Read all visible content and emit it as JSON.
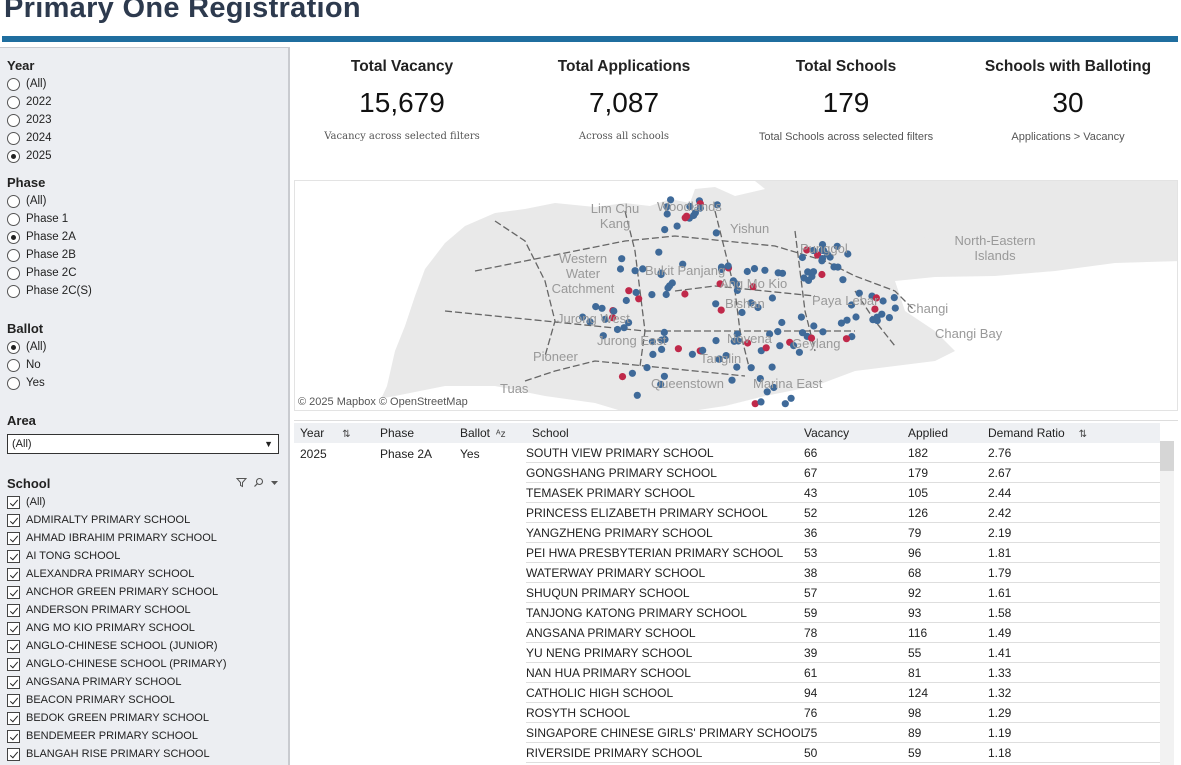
{
  "title": "Primary One Registration",
  "filters": {
    "year": {
      "label": "Year",
      "options": [
        "(All)",
        "2022",
        "2023",
        "2024",
        "2025"
      ],
      "selected": "2025"
    },
    "phase": {
      "label": "Phase",
      "options": [
        "(All)",
        "Phase 1",
        "Phase 2A",
        "Phase 2B",
        "Phase 2C",
        "Phase 2C(S)"
      ],
      "selected": "Phase 2A"
    },
    "ballot": {
      "label": "Ballot",
      "options": [
        "(All)",
        "No",
        "Yes"
      ],
      "selected": "(All)"
    },
    "area": {
      "label": "Area",
      "value": "(All)"
    },
    "school": {
      "label": "School",
      "options": [
        "(All)",
        "ADMIRALTY PRIMARY SCHOOL",
        "AHMAD IBRAHIM PRIMARY SCHOOL",
        "AI TONG SCHOOL",
        "ALEXANDRA PRIMARY SCHOOL",
        "ANCHOR GREEN PRIMARY SCHOOL",
        "ANDERSON PRIMARY SCHOOL",
        "ANG MO KIO PRIMARY SCHOOL",
        "ANGLO-CHINESE SCHOOL (JUNIOR)",
        "ANGLO-CHINESE SCHOOL (PRIMARY)",
        "ANGSANA PRIMARY SCHOOL",
        "BEACON PRIMARY SCHOOL",
        "BEDOK GREEN PRIMARY SCHOOL",
        "BENDEMEER PRIMARY SCHOOL",
        "BLANGAH RISE PRIMARY SCHOOL"
      ]
    }
  },
  "kpis": {
    "total_vacancy": {
      "label": "Total Vacancy",
      "value": "15,679",
      "sub": "Vacancy across selected filters"
    },
    "total_applications": {
      "label": "Total Applications",
      "value": "7,087",
      "sub": "Across all schools"
    },
    "total_schools": {
      "label": "Total Schools",
      "value": "179",
      "sub": "Total Schools across selected filters"
    },
    "schools_balloting": {
      "label": "Schools with Balloting",
      "value": "30",
      "sub": "Applications > Vacancy"
    }
  },
  "map": {
    "labels": [
      "Lim Chu Kang",
      "Woodlands",
      "Yishun",
      "Punggol",
      "North-Eastern Islands",
      "Western Water Catchment",
      "Bukit Panjang",
      "Ang Mo Kio",
      "Bishan",
      "Paya Lebar",
      "Changi",
      "Changi Bay",
      "Jurong West",
      "Jurong East",
      "Pioneer",
      "Novena",
      "Geylang",
      "Tanglin",
      "Tuas",
      "Queenstown",
      "Marina East"
    ],
    "attribution": "© 2025 Mapbox  © OpenStreetMap",
    "colors": {
      "no_ballot": "#3f6a99",
      "ballot": "#c0294a",
      "land": "#e9e9e9",
      "water": "#ffffff"
    }
  },
  "table": {
    "headers": {
      "year": "Year",
      "phase": "Phase",
      "ballot": "Ballot",
      "school": "School",
      "vacancy": "Vacancy",
      "applied": "Applied",
      "ratio": "Demand Ratio"
    },
    "group": {
      "year": "2025",
      "phase": "Phase 2A",
      "ballot": "Yes"
    },
    "rows": [
      {
        "school": "SOUTH VIEW PRIMARY SCHOOL",
        "vacancy": "66",
        "applied": "182",
        "ratio": "2.76"
      },
      {
        "school": "GONGSHANG PRIMARY SCHOOL",
        "vacancy": "67",
        "applied": "179",
        "ratio": "2.67"
      },
      {
        "school": "TEMASEK PRIMARY SCHOOL",
        "vacancy": "43",
        "applied": "105",
        "ratio": "2.44"
      },
      {
        "school": "PRINCESS ELIZABETH PRIMARY SCHOOL",
        "vacancy": "52",
        "applied": "126",
        "ratio": "2.42"
      },
      {
        "school": "YANGZHENG PRIMARY SCHOOL",
        "vacancy": "36",
        "applied": "79",
        "ratio": "2.19"
      },
      {
        "school": "PEI HWA PRESBYTERIAN PRIMARY SCHOOL",
        "vacancy": "53",
        "applied": "96",
        "ratio": "1.81"
      },
      {
        "school": "WATERWAY PRIMARY SCHOOL",
        "vacancy": "38",
        "applied": "68",
        "ratio": "1.79"
      },
      {
        "school": "SHUQUN PRIMARY SCHOOL",
        "vacancy": "57",
        "applied": "92",
        "ratio": "1.61"
      },
      {
        "school": "TANJONG KATONG PRIMARY SCHOOL",
        "vacancy": "59",
        "applied": "93",
        "ratio": "1.58"
      },
      {
        "school": "ANGSANA PRIMARY SCHOOL",
        "vacancy": "78",
        "applied": "116",
        "ratio": "1.49"
      },
      {
        "school": "YU NENG PRIMARY SCHOOL",
        "vacancy": "39",
        "applied": "55",
        "ratio": "1.41"
      },
      {
        "school": "NAN HUA PRIMARY SCHOOL",
        "vacancy": "61",
        "applied": "81",
        "ratio": "1.33"
      },
      {
        "school": "CATHOLIC HIGH SCHOOL",
        "vacancy": "94",
        "applied": "124",
        "ratio": "1.32"
      },
      {
        "school": "ROSYTH SCHOOL",
        "vacancy": "76",
        "applied": "98",
        "ratio": "1.29"
      },
      {
        "school": "SINGAPORE CHINESE GIRLS' PRIMARY SCHOOL",
        "vacancy": "75",
        "applied": "89",
        "ratio": "1.19"
      },
      {
        "school": "RIVERSIDE PRIMARY SCHOOL",
        "vacancy": "50",
        "applied": "59",
        "ratio": "1.18"
      }
    ]
  },
  "icons": {
    "sort": "sort-icon",
    "sort_az": "sort-az-icon",
    "filter": "filter-icon",
    "search": "search-icon",
    "more": "chevron-down-icon",
    "dropdown": "dropdown-arrow-icon"
  }
}
